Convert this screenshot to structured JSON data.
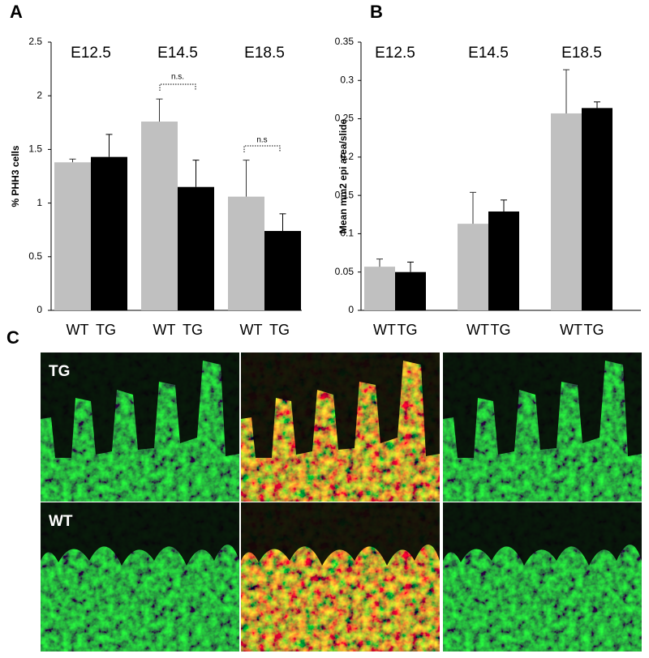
{
  "panels": {
    "a": "A",
    "b": "B",
    "c": "C"
  },
  "chart_data": [
    {
      "type": "bar",
      "ylabel": "% PHH3 cells",
      "categories": [
        "E12.5",
        "E14.5",
        "E18.5"
      ],
      "series": [
        {
          "name": "WT",
          "color": "#c0c0c0",
          "values": [
            1.38,
            1.76,
            1.06
          ],
          "errors": [
            0.03,
            0.21,
            0.34
          ]
        },
        {
          "name": "TG",
          "color": "#000000",
          "values": [
            1.43,
            1.15,
            0.74
          ],
          "errors": [
            0.21,
            0.25,
            0.16
          ]
        }
      ],
      "ylim": [
        0,
        2.5
      ],
      "yticks": [
        0,
        0.5,
        1,
        1.5,
        2,
        2.5
      ],
      "annotations": [
        "n.s.",
        "n.s"
      ]
    },
    {
      "type": "bar",
      "ylabel": "Mean mm2 epi area/slide",
      "categories": [
        "E12.5",
        "E14.5",
        "E18.5"
      ],
      "series": [
        {
          "name": "WT",
          "color": "#c0c0c0",
          "values": [
            0.057,
            0.113,
            0.257
          ],
          "errors": [
            0.01,
            0.041,
            0.057
          ]
        },
        {
          "name": "TG",
          "color": "#000000",
          "values": [
            0.05,
            0.129,
            0.264
          ],
          "errors": [
            0.013,
            0.015,
            0.008
          ]
        }
      ],
      "ylim": [
        0,
        0.35
      ],
      "yticks": [
        0,
        0.05,
        0.1,
        0.15,
        0.2,
        0.25,
        0.3,
        0.35
      ]
    }
  ],
  "images": {
    "row_labels": [
      "TG",
      "WT"
    ]
  }
}
